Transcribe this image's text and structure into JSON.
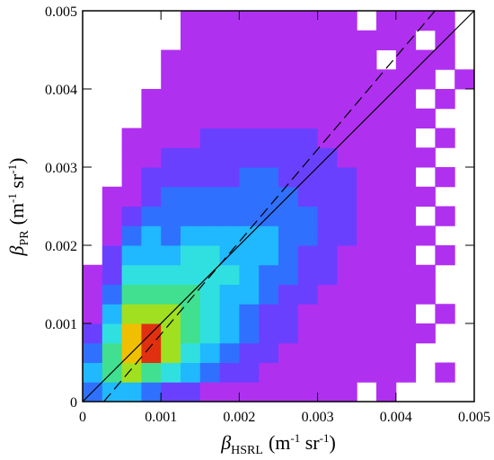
{
  "chart_data": {
    "type": "heatmap",
    "xlabel": [
      "β",
      "HSRL",
      "(m",
      "-1",
      " sr",
      "-1",
      ")"
    ],
    "ylabel": [
      "β",
      "PR",
      "(m",
      "-1",
      " sr",
      "-1",
      ")"
    ],
    "xlim": [
      0,
      0.005
    ],
    "ylim": [
      0,
      0.005
    ],
    "xticks": [
      0,
      0.001,
      0.002,
      0.003,
      0.004,
      0.005
    ],
    "yticks": [
      0,
      0.001,
      0.002,
      0.003,
      0.004,
      0.005
    ],
    "xbins": [
      0,
      0.00025,
      0.0005,
      0.00075,
      0.001,
      0.00125,
      0.0015,
      0.00175,
      0.002,
      0.00225,
      0.0025,
      0.00275,
      0.003,
      0.00325,
      0.0035,
      0.00375,
      0.004,
      0.00425,
      0.0045,
      0.00475,
      0.005
    ],
    "ybins": [
      0,
      0.00025,
      0.0005,
      0.00075,
      0.001,
      0.00125,
      0.0015,
      0.00175,
      0.002,
      0.00225,
      0.0025,
      0.00275,
      0.003,
      0.00325,
      0.0035,
      0.00375,
      0.004,
      0.00425,
      0.0045,
      0.00475,
      0.005
    ],
    "colorscale": [
      "#ffffff",
      "#b030f0",
      "#6a40ff",
      "#3070ff",
      "#20b8ff",
      "#30e0e0",
      "#40e090",
      "#a0e020",
      "#f0c000",
      "#e03010"
    ],
    "z": [
      [
        3,
        4,
        4,
        3,
        2,
        2,
        1,
        1,
        1,
        1,
        1,
        1,
        1,
        1,
        0,
        1,
        0,
        0,
        0,
        0
      ],
      [
        4,
        6,
        7,
        6,
        5,
        4,
        3,
        2,
        2,
        1,
        1,
        1,
        1,
        1,
        1,
        1,
        1,
        0,
        1,
        0
      ],
      [
        3,
        6,
        8,
        9,
        7,
        5,
        4,
        3,
        2,
        2,
        1,
        1,
        1,
        1,
        1,
        1,
        1,
        0,
        0,
        0
      ],
      [
        2,
        5,
        8,
        9,
        7,
        6,
        5,
        4,
        3,
        2,
        2,
        1,
        1,
        1,
        1,
        1,
        1,
        1,
        0,
        0
      ],
      [
        1,
        4,
        7,
        7,
        7,
        6,
        5,
        4,
        3,
        2,
        2,
        1,
        1,
        1,
        1,
        1,
        1,
        0,
        1,
        0
      ],
      [
        1,
        3,
        6,
        6,
        6,
        6,
        5,
        4,
        4,
        3,
        2,
        2,
        1,
        1,
        1,
        1,
        1,
        1,
        0,
        0
      ],
      [
        1,
        2,
        5,
        5,
        5,
        5,
        5,
        5,
        4,
        3,
        3,
        2,
        2,
        1,
        1,
        1,
        1,
        1,
        0,
        0
      ],
      [
        0,
        2,
        4,
        4,
        4,
        5,
        5,
        4,
        4,
        4,
        3,
        2,
        2,
        1,
        1,
        1,
        1,
        0,
        1,
        0
      ],
      [
        0,
        1,
        3,
        4,
        3,
        4,
        4,
        4,
        4,
        4,
        3,
        3,
        2,
        2,
        1,
        1,
        1,
        1,
        0,
        0
      ],
      [
        0,
        1,
        2,
        3,
        3,
        3,
        3,
        3,
        3,
        3,
        3,
        3,
        2,
        2,
        1,
        1,
        1,
        0,
        1,
        0
      ],
      [
        0,
        1,
        1,
        2,
        3,
        3,
        3,
        3,
        3,
        3,
        3,
        2,
        2,
        2,
        1,
        1,
        1,
        1,
        0,
        0
      ],
      [
        0,
        0,
        1,
        2,
        2,
        2,
        2,
        2,
        3,
        3,
        2,
        2,
        2,
        2,
        1,
        1,
        1,
        0,
        1,
        0
      ],
      [
        0,
        0,
        1,
        1,
        2,
        2,
        2,
        2,
        2,
        2,
        2,
        2,
        2,
        1,
        1,
        1,
        1,
        1,
        0,
        0
      ],
      [
        0,
        0,
        1,
        1,
        1,
        1,
        2,
        2,
        2,
        2,
        2,
        2,
        1,
        1,
        1,
        1,
        1,
        0,
        1,
        0
      ],
      [
        0,
        0,
        0,
        1,
        1,
        1,
        1,
        1,
        1,
        1,
        1,
        1,
        1,
        1,
        1,
        1,
        1,
        1,
        0,
        0
      ],
      [
        0,
        0,
        0,
        1,
        1,
        1,
        1,
        1,
        1,
        1,
        1,
        1,
        1,
        1,
        1,
        1,
        1,
        0,
        1,
        0
      ],
      [
        0,
        0,
        0,
        0,
        1,
        1,
        1,
        1,
        1,
        1,
        1,
        1,
        1,
        1,
        1,
        1,
        1,
        1,
        0,
        1
      ],
      [
        0,
        0,
        0,
        0,
        1,
        1,
        1,
        1,
        1,
        1,
        1,
        1,
        1,
        1,
        1,
        0,
        1,
        1,
        1,
        0
      ],
      [
        0,
        0,
        0,
        0,
        0,
        1,
        1,
        1,
        1,
        1,
        1,
        1,
        1,
        1,
        1,
        1,
        1,
        0,
        1,
        0
      ],
      [
        0,
        0,
        0,
        0,
        0,
        1,
        1,
        1,
        1,
        1,
        1,
        1,
        1,
        1,
        0,
        1,
        1,
        1,
        1,
        0
      ]
    ],
    "lines": [
      {
        "style": "solid",
        "color": "#000000",
        "x": [
          0,
          0.005
        ],
        "y": [
          0,
          0.005
        ]
      },
      {
        "style": "dashed",
        "color": "#000000",
        "x": [
          0.00027,
          0.0045
        ],
        "y": [
          0,
          0.005
        ]
      }
    ]
  }
}
